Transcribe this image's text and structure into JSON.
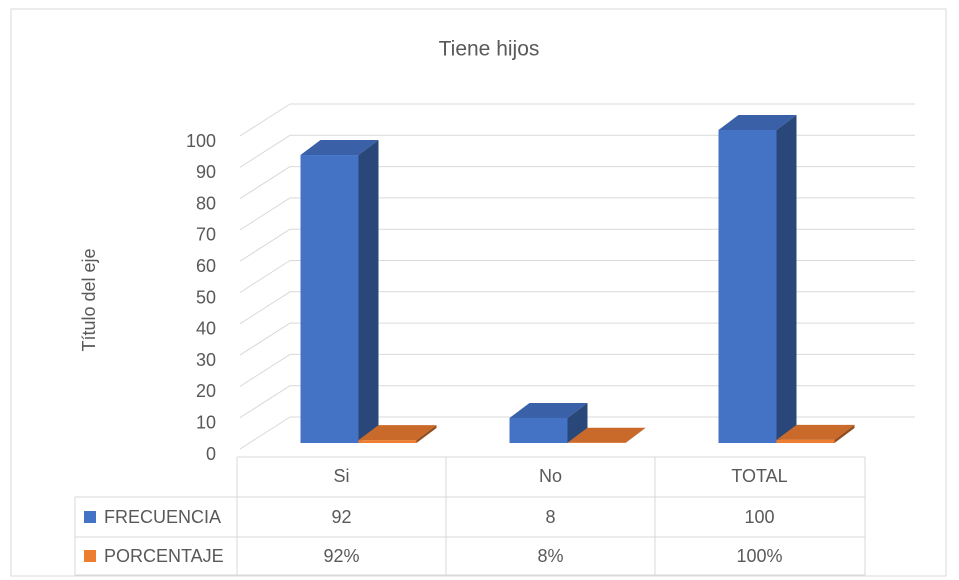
{
  "chart_data": {
    "type": "bar3d",
    "title": "Tiene hijos",
    "y_label": "Título del eje",
    "categories": [
      "Si",
      "No",
      "TOTAL"
    ],
    "series": [
      {
        "name": "FRECUENCIA",
        "color": "#4472c4",
        "values": [
          92,
          8,
          100
        ]
      },
      {
        "name": "PORCENTAJE",
        "color": "#ed7d31",
        "values": [
          0.92,
          0.08,
          1
        ],
        "value_labels": [
          "92%",
          "8%",
          "100%"
        ]
      }
    ],
    "ylim": [
      0,
      100
    ],
    "yticks": [
      0,
      10,
      20,
      30,
      40,
      50,
      60,
      70,
      80,
      90,
      100
    ],
    "grid": true,
    "data_table": true
  }
}
